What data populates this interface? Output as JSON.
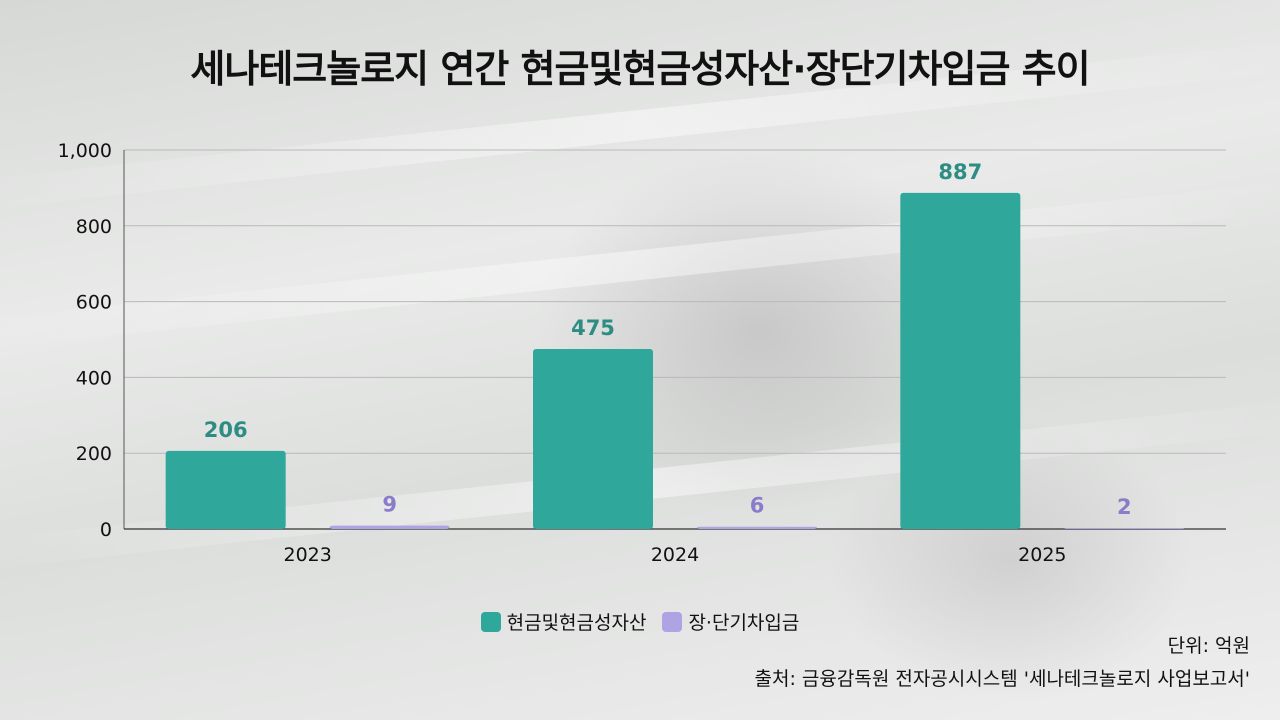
{
  "chart_data": {
    "type": "bar",
    "title": "세나테크놀로지 연간 현금및현금성자산·장단기차입금 추이",
    "categories": [
      "2023",
      "2024",
      "2025"
    ],
    "series": [
      {
        "name": "현금및현금성자산",
        "values": [
          206,
          475,
          887
        ],
        "color": "#2fa79a"
      },
      {
        "name": "장·단기차입금",
        "values": [
          9,
          6,
          2
        ],
        "color": "#b0a3e3"
      }
    ],
    "data_labels": {
      "series_0": [
        "206",
        "475",
        "887"
      ],
      "series_1": [
        "9",
        "6",
        "2"
      ]
    },
    "ylim": [
      0,
      1000
    ],
    "yticks": [
      "0",
      "200",
      "400",
      "600",
      "800",
      "1,000"
    ],
    "ytick_values": [
      0,
      200,
      400,
      600,
      800,
      1000
    ],
    "grid": true,
    "legend_position": "bottom-center",
    "xlabel": "",
    "ylabel": ""
  },
  "legend": {
    "item_0": "현금및현금성자산",
    "item_1": "장·단기차입금"
  },
  "notes": {
    "unit": "단위: 억원",
    "source": "출처: 금융감독원 전자공시시스템 '세나테크놀로지 사업보고서'"
  },
  "colors": {
    "cash": "#2fa79a",
    "cash_label": "#2e8d82",
    "debt": "#b0a3e3",
    "debt_label": "#8a7cc8"
  }
}
